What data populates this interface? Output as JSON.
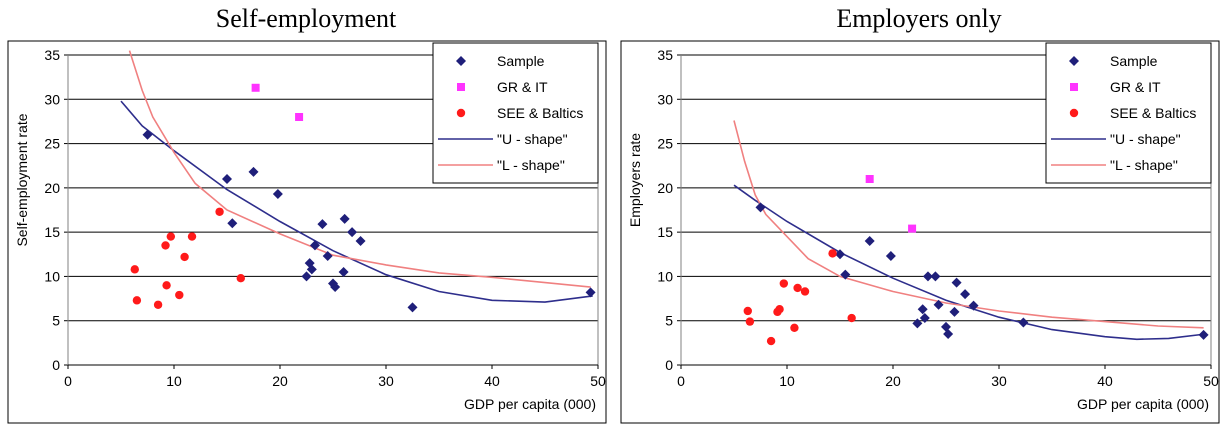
{
  "chart_data": [
    {
      "type": "scatter",
      "title": "Self-employment",
      "xlabel": "GDP per capita (000)",
      "ylabel": "Self-employment rate",
      "xlim": [
        0,
        50
      ],
      "ylim": [
        0,
        35
      ],
      "xticks": [
        "0",
        "10",
        "20",
        "30",
        "40",
        "50"
      ],
      "yticks": [
        "0",
        "5",
        "10",
        "15",
        "20",
        "25",
        "30",
        "35"
      ],
      "grid": "horizontal",
      "legend_position": "top-right",
      "series": [
        {
          "name": "Sample",
          "kind": "scatter",
          "marker": "diamond",
          "color": "#1f1f7a",
          "points": [
            [
              7.5,
              26
            ],
            [
              15,
              21
            ],
            [
              15.5,
              16
            ],
            [
              17.5,
              21.8
            ],
            [
              19.8,
              19.3
            ],
            [
              22.5,
              10
            ],
            [
              22.8,
              11.5
            ],
            [
              23,
              10.8
            ],
            [
              23.3,
              13.5
            ],
            [
              24,
              15.9
            ],
            [
              24.5,
              12.3
            ],
            [
              25,
              9.2
            ],
            [
              25.2,
              8.8
            ],
            [
              26,
              10.5
            ],
            [
              26.1,
              16.5
            ],
            [
              26.8,
              15
            ],
            [
              27.6,
              14
            ],
            [
              32.5,
              6.5
            ],
            [
              49.3,
              8.2
            ]
          ]
        },
        {
          "name": "GR & IT",
          "kind": "scatter",
          "marker": "square",
          "color": "#ff33ff",
          "points": [
            [
              17.7,
              31.3
            ],
            [
              21.8,
              28
            ]
          ]
        },
        {
          "name": "SEE & Baltics",
          "kind": "scatter",
          "marker": "circle",
          "color": "#ff1a1a",
          "points": [
            [
              6.3,
              10.8
            ],
            [
              6.5,
              7.3
            ],
            [
              8.5,
              6.8
            ],
            [
              9.2,
              13.5
            ],
            [
              9.3,
              9
            ],
            [
              9.7,
              14.5
            ],
            [
              10.5,
              7.9
            ],
            [
              11,
              12.2
            ],
            [
              11.7,
              14.5
            ],
            [
              14.3,
              17.3
            ],
            [
              16.3,
              9.8
            ]
          ]
        },
        {
          "name": "\"U - shape\"",
          "kind": "line",
          "color": "#2e2e8c",
          "points": [
            [
              5,
              29.8
            ],
            [
              7,
              27
            ],
            [
              10,
              24.2
            ],
            [
              15,
              19.8
            ],
            [
              20,
              16.2
            ],
            [
              25,
              12.9
            ],
            [
              30,
              10.2
            ],
            [
              35,
              8.3
            ],
            [
              40,
              7.3
            ],
            [
              45,
              7.1
            ],
            [
              49.5,
              7.8
            ]
          ]
        },
        {
          "name": "\"L - shape\"",
          "kind": "line",
          "color": "#f08080",
          "points": [
            [
              5.8,
              35.5
            ],
            [
              7,
              31
            ],
            [
              8,
              28
            ],
            [
              10,
              24
            ],
            [
              12,
              20.5
            ],
            [
              15,
              17.5
            ],
            [
              20,
              14.8
            ],
            [
              25,
              12.4
            ],
            [
              30,
              11.3
            ],
            [
              35,
              10.4
            ],
            [
              40,
              9.9
            ],
            [
              45,
              9.3
            ],
            [
              49.3,
              8.8
            ]
          ]
        }
      ]
    },
    {
      "type": "scatter",
      "title": "Employers only",
      "xlabel": "GDP per capita (000)",
      "ylabel": "Employers rate",
      "xlim": [
        0,
        50
      ],
      "ylim": [
        0,
        35
      ],
      "xticks": [
        "0",
        "10",
        "20",
        "30",
        "40",
        "50"
      ],
      "yticks": [
        "0",
        "5",
        "10",
        "15",
        "20",
        "25",
        "30",
        "35"
      ],
      "grid": "horizontal",
      "legend_position": "top-right",
      "series": [
        {
          "name": "Sample",
          "kind": "scatter",
          "marker": "diamond",
          "color": "#1f1f7a",
          "points": [
            [
              7.5,
              17.8
            ],
            [
              15,
              12.5
            ],
            [
              15.5,
              10.2
            ],
            [
              17.8,
              14
            ],
            [
              19.8,
              12.3
            ],
            [
              22.3,
              4.7
            ],
            [
              22.8,
              6.3
            ],
            [
              23,
              5.3
            ],
            [
              23.3,
              10
            ],
            [
              24,
              10
            ],
            [
              24.3,
              6.8
            ],
            [
              25,
              4.3
            ],
            [
              25.2,
              3.5
            ],
            [
              25.8,
              6
            ],
            [
              26,
              9.3
            ],
            [
              26.8,
              8
            ],
            [
              27.6,
              6.7
            ],
            [
              32.3,
              4.8
            ],
            [
              49.3,
              3.4
            ]
          ]
        },
        {
          "name": "GR & IT",
          "kind": "scatter",
          "marker": "square",
          "color": "#ff33ff",
          "points": [
            [
              17.8,
              21
            ],
            [
              21.8,
              15.4
            ]
          ]
        },
        {
          "name": "SEE & Baltics",
          "kind": "scatter",
          "marker": "circle",
          "color": "#ff1a1a",
          "points": [
            [
              6.3,
              6.1
            ],
            [
              6.5,
              4.9
            ],
            [
              8.5,
              2.7
            ],
            [
              9.1,
              6
            ],
            [
              9.3,
              6.3
            ],
            [
              9.7,
              9.2
            ],
            [
              10.7,
              4.2
            ],
            [
              11,
              8.7
            ],
            [
              11.7,
              8.3
            ],
            [
              14.3,
              12.6
            ],
            [
              16.1,
              5.3
            ]
          ]
        },
        {
          "name": "\"U - shape\"",
          "kind": "line",
          "color": "#2e2e8c",
          "points": [
            [
              5,
              20.3
            ],
            [
              7,
              18.6
            ],
            [
              10,
              16.2
            ],
            [
              15,
              12.7
            ],
            [
              20,
              9.8
            ],
            [
              25,
              7.3
            ],
            [
              30,
              5.4
            ],
            [
              35,
              4
            ],
            [
              40,
              3.2
            ],
            [
              43,
              2.9
            ],
            [
              46,
              3
            ],
            [
              49.5,
              3.5
            ]
          ]
        },
        {
          "name": "\"L - shape\"",
          "kind": "line",
          "color": "#f08080",
          "points": [
            [
              5,
              27.6
            ],
            [
              6,
              23
            ],
            [
              7,
              19.2
            ],
            [
              8,
              17
            ],
            [
              10,
              14.5
            ],
            [
              12,
              12
            ],
            [
              15,
              10
            ],
            [
              20,
              8.3
            ],
            [
              25,
              7
            ],
            [
              30,
              6.1
            ],
            [
              35,
              5.4
            ],
            [
              40,
              4.9
            ],
            [
              45,
              4.4
            ],
            [
              49.3,
              4.2
            ]
          ]
        }
      ]
    }
  ]
}
